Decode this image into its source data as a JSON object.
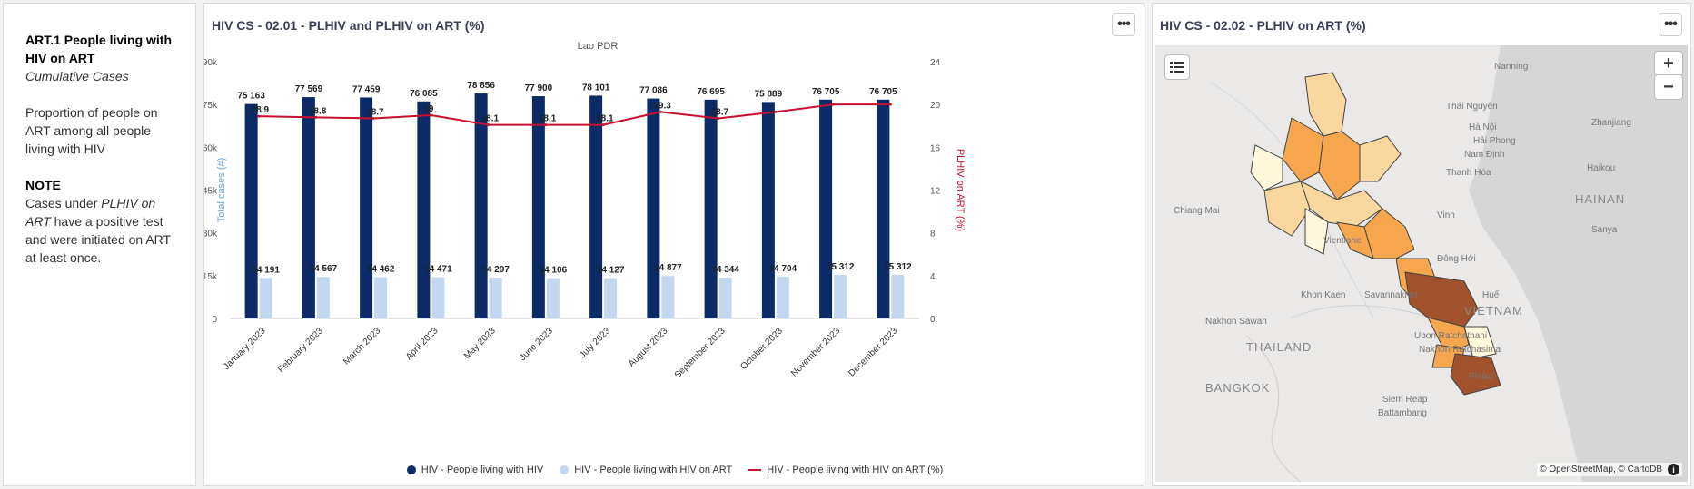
{
  "info": {
    "title": "ART.1 People living with HIV on ART",
    "subtitle": "Cumulative Cases",
    "description": "Proportion of people on ART among all people living with HIV",
    "note_label": "NOTE",
    "note_text_1": "Cases under ",
    "note_text_em": "PLHIV on ART",
    "note_text_2": " have a positive test and were initiated on ART at least once."
  },
  "chart_panel": {
    "title": "HIV CS - 02.01 - PLHIV and PLHIV on ART (%)",
    "menu_label": "•••"
  },
  "map_panel": {
    "title": "HIV CS - 02.02 - PLHIV on ART (%)",
    "menu_label": "•••",
    "zoom_in": "+",
    "zoom_out": "−",
    "layers_icon": "list-icon",
    "attribution": "© OpenStreetMap, © CartoDB",
    "labels": [
      {
        "text": "Nanning",
        "cls": ""
      },
      {
        "text": "Thái Nguyên",
        "cls": ""
      },
      {
        "text": "Zhanjiang",
        "cls": ""
      },
      {
        "text": "Hà Nội",
        "cls": ""
      },
      {
        "text": "Hải Phong",
        "cls": ""
      },
      {
        "text": "Nam Định",
        "cls": ""
      },
      {
        "text": "Haikou",
        "cls": ""
      },
      {
        "text": "Thanh Hóa",
        "cls": ""
      },
      {
        "text": "HAINAN",
        "cls": "big"
      },
      {
        "text": "Chiang Mai",
        "cls": ""
      },
      {
        "text": "Vinh",
        "cls": ""
      },
      {
        "text": "Sanya",
        "cls": ""
      },
      {
        "text": "Vientiane",
        "cls": ""
      },
      {
        "text": "Đông Hới",
        "cls": ""
      },
      {
        "text": "Khon Kaen",
        "cls": ""
      },
      {
        "text": "Savannakhet",
        "cls": ""
      },
      {
        "text": "Huế",
        "cls": ""
      },
      {
        "text": "VIETNAM",
        "cls": "big"
      },
      {
        "text": "Nakhon Sawan",
        "cls": ""
      },
      {
        "text": "THAILAND",
        "cls": "big"
      },
      {
        "text": "Ubon Ratchathani",
        "cls": ""
      },
      {
        "text": "Nakhon Ratchasima",
        "cls": ""
      },
      {
        "text": "BANGKOK",
        "cls": "big"
      },
      {
        "text": "Pleiku",
        "cls": ""
      },
      {
        "text": "Siem Reap",
        "cls": ""
      },
      {
        "text": "Battambang",
        "cls": ""
      }
    ]
  },
  "legend": [
    {
      "label": "HIV - People living with HIV",
      "color": "#0b2a66",
      "kind": "dot"
    },
    {
      "label": "HIV - People living with HIV on ART",
      "color": "#c3d8f0",
      "kind": "dot"
    },
    {
      "label": "HIV - People living with HIV on ART (%)",
      "color": "#c8102e",
      "kind": "line"
    }
  ],
  "chart_data": {
    "type": "bar",
    "title": "Lao PDR",
    "categories": [
      "January 2023",
      "February 2023",
      "March 2023",
      "April 2023",
      "May 2023",
      "June 2023",
      "July 2023",
      "August 2023",
      "September 2023",
      "October 2023",
      "November 2023",
      "December 2023"
    ],
    "series": [
      {
        "name": "HIV - People living with HIV",
        "type": "bar",
        "axis": "left",
        "color": "#0b2a66",
        "values": [
          75163,
          77569,
          77459,
          76085,
          78856,
          77900,
          78101,
          77086,
          76695,
          75889,
          76705,
          76705
        ],
        "labels": [
          "75 163",
          "77 569",
          "77 459",
          "76 085",
          "78 856",
          "77 900",
          "78 101",
          "77 086",
          "76 695",
          "75 889",
          "76 705",
          "76 705"
        ]
      },
      {
        "name": "HIV - People living with HIV on ART",
        "type": "bar",
        "axis": "left",
        "color": "#c3d8f0",
        "values": [
          14191,
          14567,
          14462,
          14471,
          14297,
          14106,
          14127,
          14877,
          14344,
          14704,
          15312,
          15312
        ],
        "labels": [
          "14 191",
          "14 567",
          "14 462",
          "14 471",
          "14 297",
          "14 106",
          "14 127",
          "14 877",
          "14 344",
          "14 704",
          "15 312",
          "15 312"
        ]
      },
      {
        "name": "HIV - People living with HIV on ART (%)",
        "type": "line",
        "axis": "right",
        "color": "#c8102e",
        "values": [
          18.9,
          18.8,
          18.7,
          19,
          18.1,
          18.1,
          18.1,
          19.3,
          18.7,
          19.3,
          20,
          20
        ],
        "labels": [
          "18.9",
          "18.8",
          "18.7",
          "19",
          "18.1",
          "18.1",
          "18.1",
          "19.3",
          "18.7",
          "",
          "",
          ""
        ]
      }
    ],
    "ylabel": "Total cases (#)",
    "y2label": "PLHIV on ART (%)",
    "ylim": [
      0,
      90000
    ],
    "y2lim": [
      0,
      24
    ],
    "yticks": [
      0,
      15000,
      30000,
      45000,
      60000,
      75000,
      90000
    ],
    "ytick_labels": [
      "0",
      "15k",
      "30k",
      "45k",
      "60k",
      "75k",
      "90k"
    ],
    "y2ticks": [
      0,
      4,
      8,
      12,
      16,
      20,
      24
    ],
    "y2tick_labels": [
      "0",
      "4",
      "8",
      "12",
      "16",
      "20",
      "24"
    ],
    "grid": false,
    "legend_position": "bottom"
  }
}
